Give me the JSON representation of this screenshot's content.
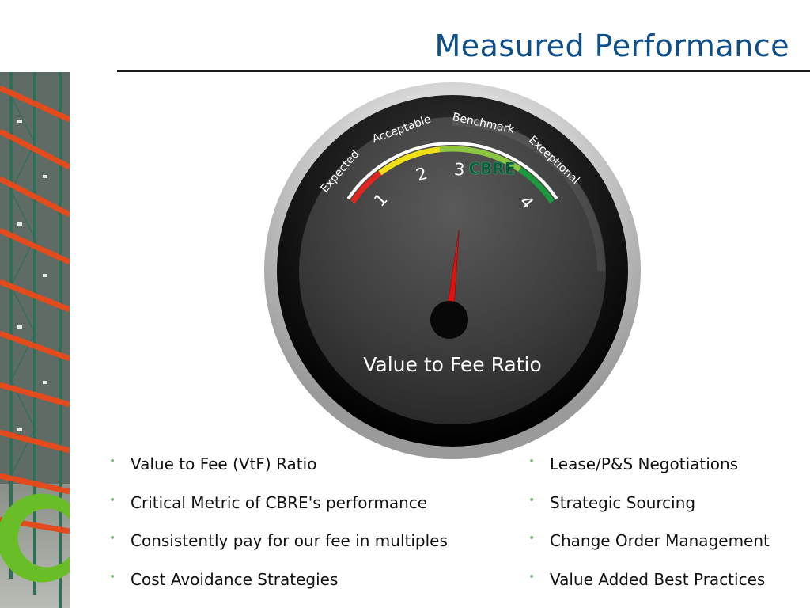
{
  "title": "Measured Performance",
  "gauge": {
    "brand": "CBRE",
    "label": "Value to Fee Ratio",
    "zones": [
      {
        "label": "Expected",
        "color": "#e0261f"
      },
      {
        "label": "Acceptable",
        "color": "#f0e018"
      },
      {
        "label": "Benchmark",
        "color": "#8cc63f"
      },
      {
        "label": "Exceptional",
        "color": "#1a9a3c"
      }
    ],
    "ticks": [
      "1",
      "2",
      "3",
      "4"
    ],
    "needle_value": 3.05,
    "scale_min": 1,
    "scale_max": 4
  },
  "bullets_left": [
    "Value to Fee (VtF) Ratio",
    "Critical Metric of CBRE's performance",
    "Consistently pay for our fee in multiples",
    "Cost Avoidance Strategies"
  ],
  "bullets_right": [
    "Lease/P&S Negotiations",
    "Strategic Sourcing",
    "Change Order Management",
    "Value Added Best Practices"
  ],
  "bullet_glyph": "•"
}
